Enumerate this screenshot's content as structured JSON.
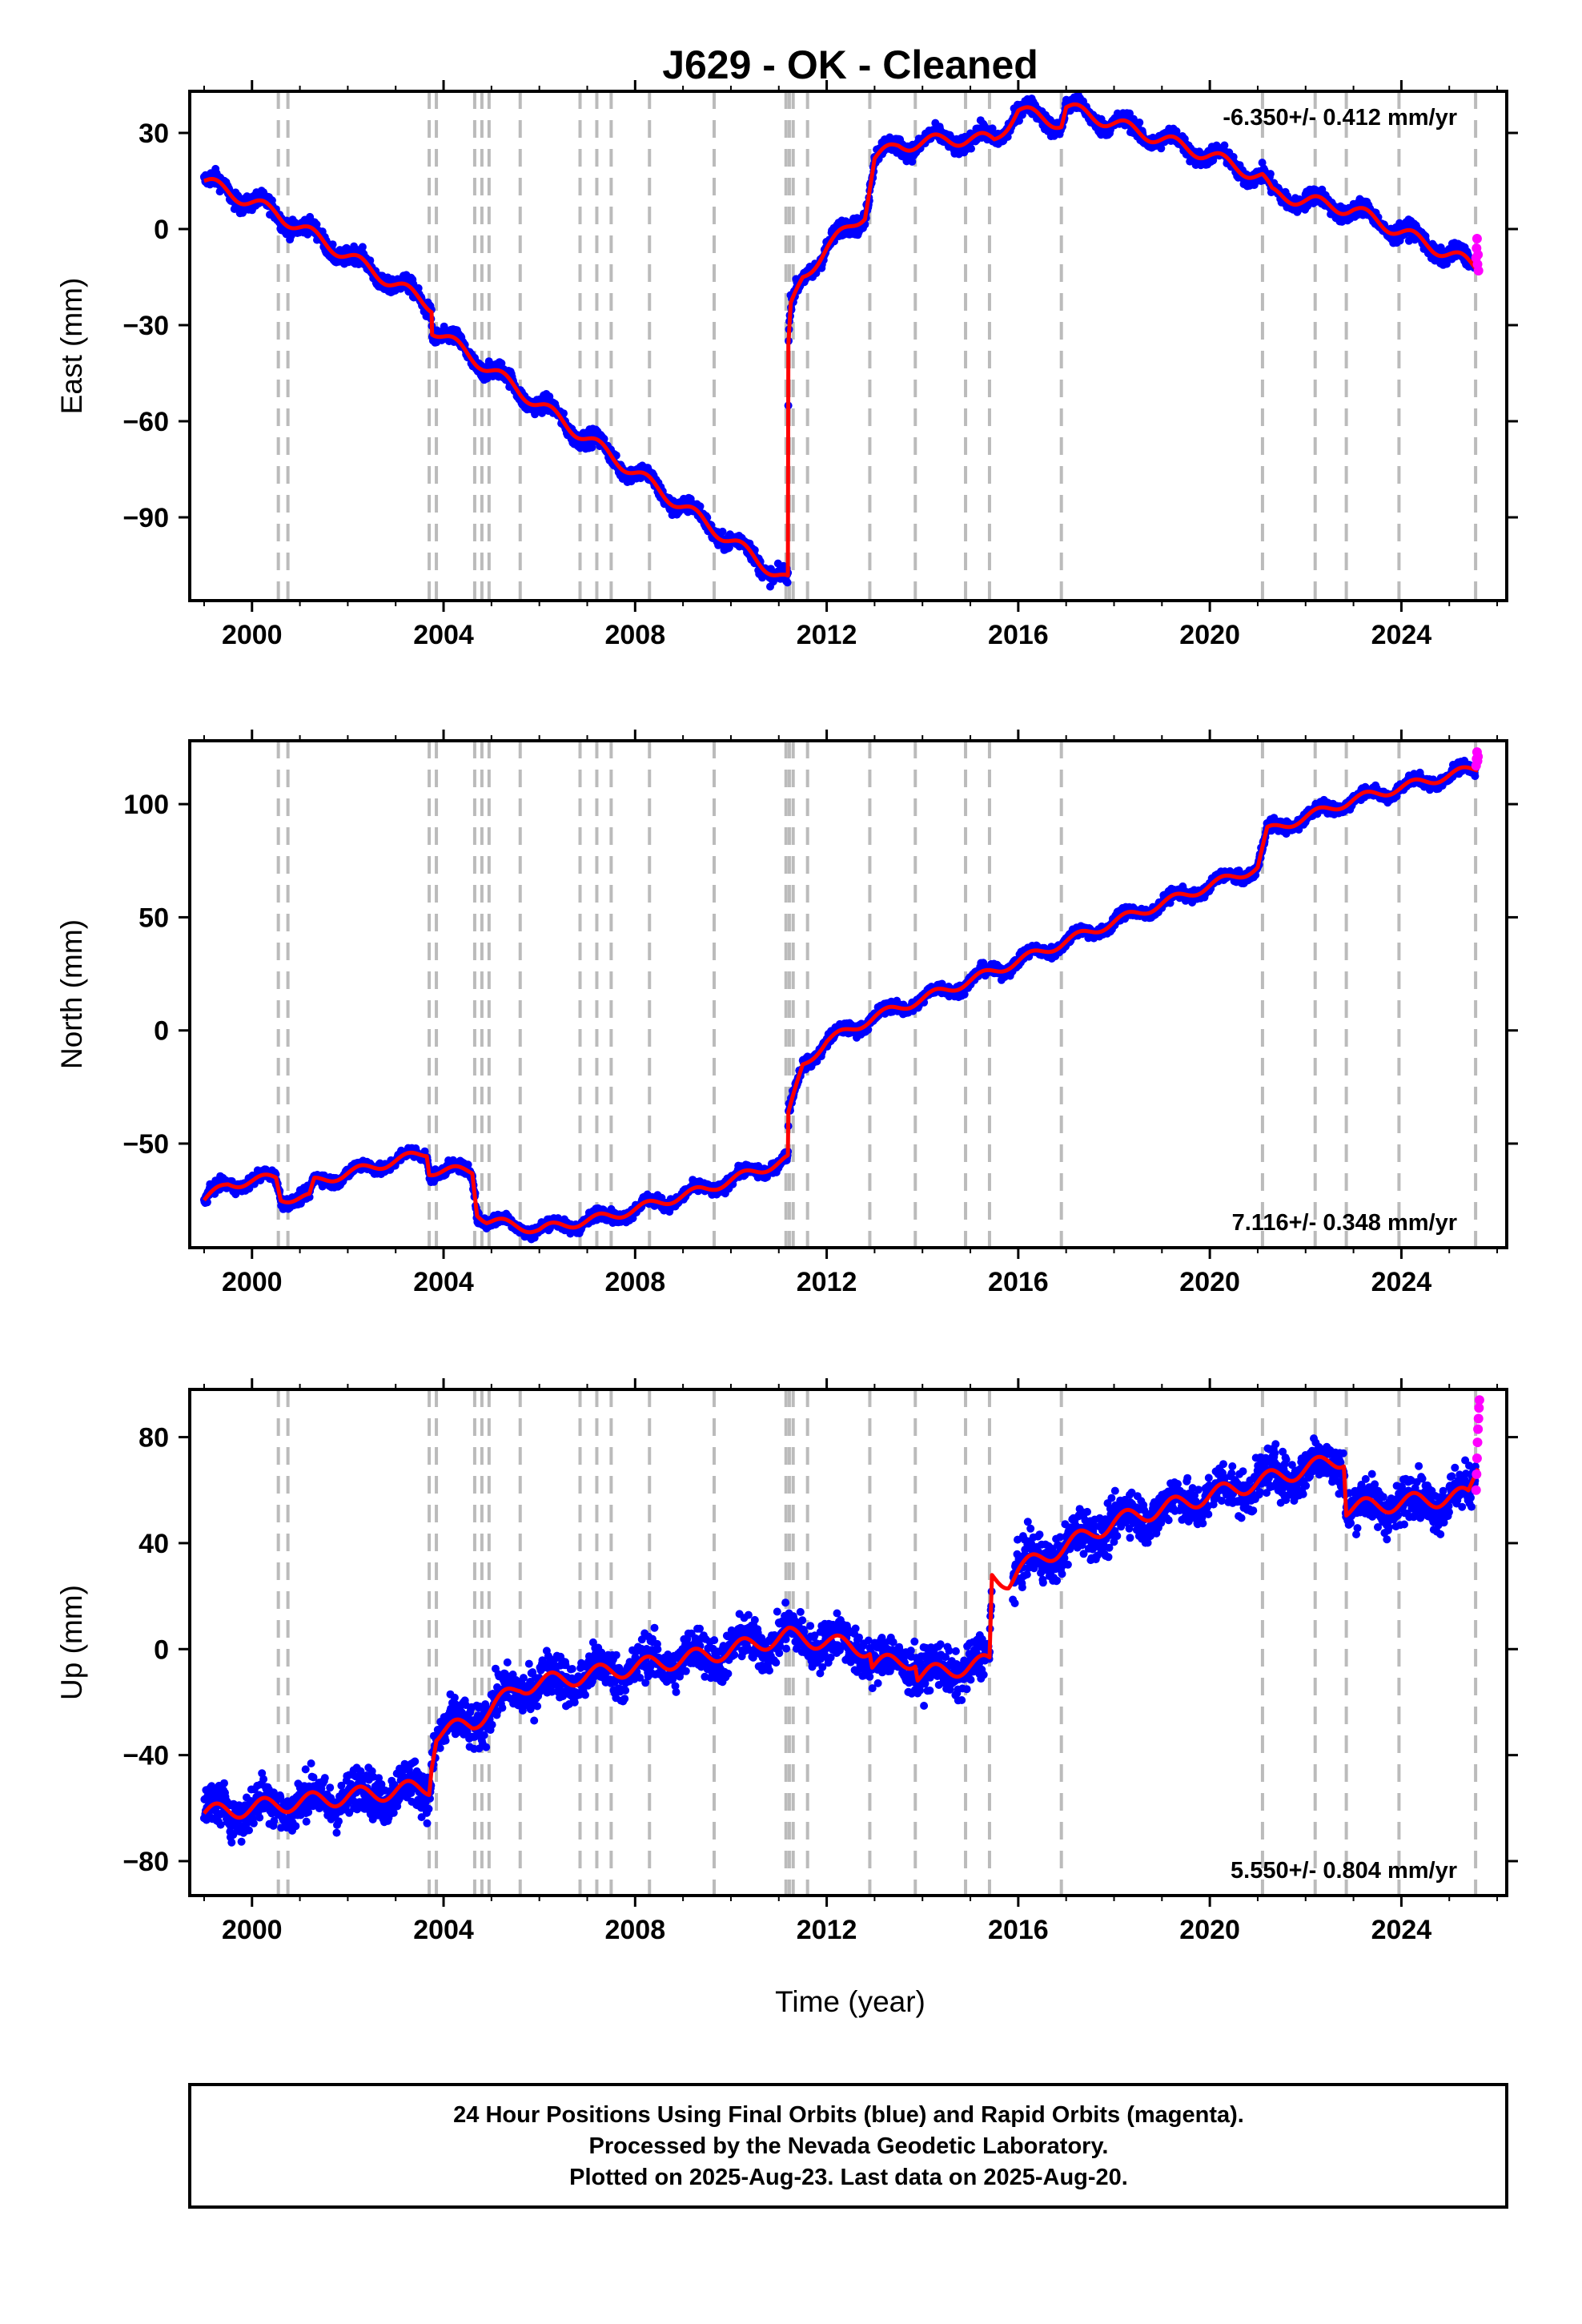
{
  "title": "J629  - OK - Cleaned",
  "footer": {
    "line1": "24 Hour Positions Using Final Orbits (blue) and Rapid Orbits (magenta).",
    "line2": "Processed by the Nevada Geodetic Laboratory.",
    "line3": "Plotted on 2025-Aug-23. Last data on 2025-Aug-20."
  },
  "colors": {
    "final": "#0000ff",
    "rapid": "#ff00ff",
    "model": "#ff0000",
    "steps": "#bbbbbb"
  },
  "chart_data": [
    {
      "type": "scatter",
      "component": "East",
      "ylabel": "East (mm)",
      "xlabel": "",
      "rate_text": "-6.350+/- 0.412 mm/yr",
      "rate_position": "top-right",
      "xlim": [
        1998.7,
        2026.2
      ],
      "ylim": [
        -116,
        43
      ],
      "xticks": [
        2000,
        2004,
        2008,
        2012,
        2016,
        2020,
        2024
      ],
      "xticklabels": [
        "2000",
        "2004",
        "2008",
        "2012",
        "2016",
        "2020",
        "2024"
      ],
      "yticks": [
        -90,
        -60,
        -30,
        0,
        30
      ],
      "yticklabels": [
        "−90",
        "−60",
        "−30",
        "0",
        "30"
      ],
      "seasonal_amplitude": 2.5,
      "noise": 1.8,
      "model": [
        [
          1999.0,
          15
        ],
        [
          2000.5,
          5
        ],
        [
          2003.75,
          -24
        ],
        [
          2003.76,
          -31
        ],
        [
          2011.19,
          -110
        ],
        [
          2011.2,
          -38
        ],
        [
          2011.25,
          -25
        ],
        [
          2011.5,
          -15
        ],
        [
          2012.0,
          -6
        ],
        [
          2012.8,
          5
        ],
        [
          2013.0,
          22
        ],
        [
          2013.5,
          26
        ],
        [
          2014.5,
          28
        ],
        [
          2015.5,
          28
        ],
        [
          2016.0,
          37
        ],
        [
          2016.9,
          33
        ],
        [
          2017.0,
          38
        ],
        [
          2018.0,
          33
        ],
        [
          2020.0,
          23
        ],
        [
          2021.1,
          16
        ],
        [
          2021.3,
          11
        ],
        [
          2023.0,
          6
        ],
        [
          2025.6,
          -12
        ]
      ],
      "step_dates": [
        2000.55,
        2000.75,
        2003.7,
        2003.85,
        2004.65,
        2004.8,
        2004.95,
        2005.6,
        2006.85,
        2007.2,
        2007.5,
        2008.3,
        2009.65,
        2011.15,
        2011.22,
        2011.3,
        2011.6,
        2012.9,
        2013.85,
        2014.9,
        2015.4,
        2016.9,
        2021.1,
        2022.2,
        2022.85,
        2023.95,
        2025.55
      ],
      "gaps": [],
      "data_end": 2025.55,
      "rapid": [
        [
          2025.56,
          -9
        ],
        [
          2025.57,
          -6
        ],
        [
          2025.58,
          -3
        ],
        [
          2025.59,
          -11
        ],
        [
          2025.6,
          -8
        ],
        [
          2025.61,
          -13
        ]
      ]
    },
    {
      "type": "scatter",
      "component": "North",
      "ylabel": "North (mm)",
      "xlabel": "",
      "rate_text": "7.116+/- 0.348 mm/yr",
      "rate_position": "bottom-right",
      "xlim": [
        1998.7,
        2026.2
      ],
      "ylim": [
        -96,
        128
      ],
      "xticks": [
        2000,
        2004,
        2008,
        2012,
        2016,
        2020,
        2024
      ],
      "xticklabels": [
        "2000",
        "2004",
        "2008",
        "2012",
        "2016",
        "2020",
        "2024"
      ],
      "yticks": [
        -50,
        0,
        50,
        100
      ],
      "yticklabels": [
        "−50",
        "0",
        "50",
        "100"
      ],
      "seasonal_amplitude": 2.5,
      "noise": 1.8,
      "model": [
        [
          1999.0,
          -75
        ],
        [
          1999.5,
          -68
        ],
        [
          2000.5,
          -65
        ],
        [
          2000.6,
          -74
        ],
        [
          2001.2,
          -74
        ],
        [
          2001.3,
          -67
        ],
        [
          2003.65,
          -54
        ],
        [
          2003.7,
          -62
        ],
        [
          2004.6,
          -62
        ],
        [
          2004.7,
          -80
        ],
        [
          2004.9,
          -84
        ],
        [
          2006.0,
          -88
        ],
        [
          2007.5,
          -82
        ],
        [
          2009.5,
          -70
        ],
        [
          2011.19,
          -57
        ],
        [
          2011.2,
          -38
        ],
        [
          2011.5,
          -15
        ],
        [
          2012.0,
          -5
        ],
        [
          2013.0,
          6
        ],
        [
          2015.0,
          22
        ],
        [
          2018.0,
          48
        ],
        [
          2021.0,
          72
        ],
        [
          2021.1,
          80
        ],
        [
          2021.2,
          88
        ],
        [
          2023.0,
          102
        ],
        [
          2025.6,
          116
        ]
      ],
      "step_dates": [
        2000.55,
        2000.75,
        2003.7,
        2003.85,
        2004.65,
        2004.8,
        2004.95,
        2005.6,
        2006.85,
        2007.2,
        2007.5,
        2008.3,
        2009.65,
        2011.15,
        2011.22,
        2011.3,
        2011.6,
        2012.9,
        2013.85,
        2014.9,
        2015.4,
        2016.9,
        2021.1,
        2022.2,
        2022.85,
        2023.95,
        2025.55
      ],
      "gaps": [],
      "data_end": 2025.55,
      "rapid": [
        [
          2025.56,
          117
        ],
        [
          2025.57,
          120
        ],
        [
          2025.58,
          123
        ],
        [
          2025.59,
          119
        ],
        [
          2025.6,
          121
        ]
      ]
    },
    {
      "type": "scatter",
      "component": "Up",
      "ylabel": "Up (mm)",
      "xlabel": "Time (year)",
      "rate_text": "5.550+/- 0.804 mm/yr",
      "rate_position": "bottom-right",
      "xlim": [
        1998.7,
        2026.2
      ],
      "ylim": [
        -93,
        98
      ],
      "xticks": [
        2000,
        2004,
        2008,
        2012,
        2016,
        2020,
        2024
      ],
      "xticklabels": [
        "2000",
        "2004",
        "2008",
        "2012",
        "2016",
        "2020",
        "2024"
      ],
      "yticks": [
        -80,
        -40,
        0,
        40,
        80
      ],
      "yticklabels": [
        "−80",
        "−40",
        "0",
        "40",
        "80"
      ],
      "seasonal_amplitude": 4,
      "noise": 6,
      "model": [
        [
          1999.0,
          -62
        ],
        [
          2003.7,
          -52
        ],
        [
          2003.75,
          -42
        ],
        [
          2003.85,
          -32
        ],
        [
          2004.6,
          -28
        ],
        [
          2005.6,
          -14
        ],
        [
          2009.6,
          -2
        ],
        [
          2011.2,
          5
        ],
        [
          2012.9,
          0
        ],
        [
          2012.95,
          -6
        ],
        [
          2013.85,
          -4
        ],
        [
          2013.9,
          -10
        ],
        [
          2015.4,
          -5
        ],
        [
          2015.45,
          27
        ],
        [
          2015.8,
          26
        ],
        [
          2016.0,
          30
        ],
        [
          2018.0,
          48
        ],
        [
          2020.0,
          58
        ],
        [
          2022.8,
          72
        ],
        [
          2022.85,
          53
        ],
        [
          2025.4,
          58
        ],
        [
          2025.6,
          70
        ]
      ],
      "step_dates": [
        2000.55,
        2000.75,
        2003.7,
        2003.85,
        2004.65,
        2004.8,
        2004.95,
        2005.6,
        2006.85,
        2007.2,
        2007.5,
        2008.3,
        2009.65,
        2011.15,
        2011.22,
        2011.3,
        2011.6,
        2012.9,
        2013.85,
        2014.9,
        2015.4,
        2016.9,
        2021.1,
        2022.2,
        2022.85,
        2023.95,
        2025.55
      ],
      "gaps": [
        [
          2015.45,
          2015.88
        ]
      ],
      "data_end": 2025.55,
      "rapid": [
        [
          2025.56,
          60
        ],
        [
          2025.57,
          66
        ],
        [
          2025.58,
          72
        ],
        [
          2025.59,
          78
        ],
        [
          2025.6,
          83
        ],
        [
          2025.61,
          87
        ],
        [
          2025.62,
          91
        ],
        [
          2025.63,
          94
        ]
      ]
    }
  ]
}
